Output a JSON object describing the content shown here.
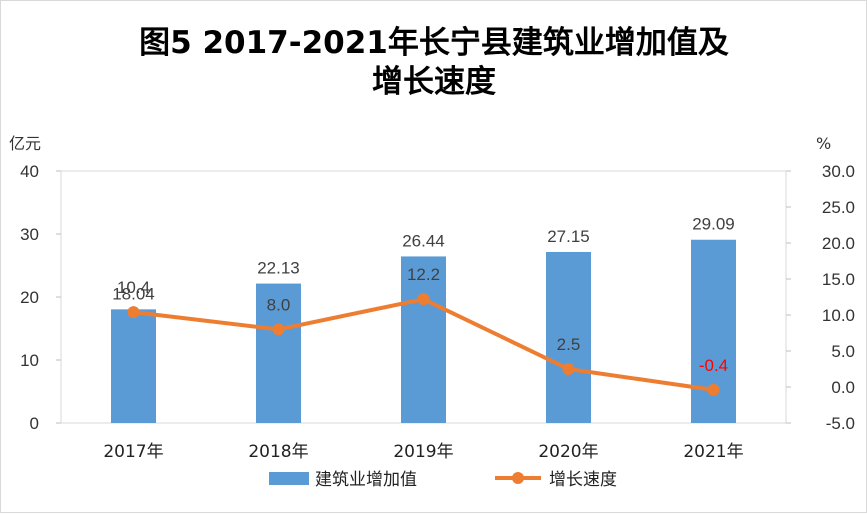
{
  "chart_data": {
    "type": "bar",
    "title_line1": "图5 2017-2021年长宁县建筑业增加值及",
    "title_line2": "增长速度",
    "left_unit": "亿元",
    "right_unit": "%",
    "categories": [
      "2017年",
      "2018年",
      "2019年",
      "2020年",
      "2021年"
    ],
    "y_left": {
      "min": 0,
      "max": 40,
      "ticks": [
        "0",
        "10",
        "20",
        "30",
        "40"
      ]
    },
    "y_right": {
      "min": -5,
      "max": 30,
      "ticks": [
        "-5.0",
        "0.0",
        "5.0",
        "10.0",
        "15.0",
        "20.0",
        "25.0",
        "30.0"
      ]
    },
    "series": [
      {
        "name": "建筑业增加值",
        "type": "bar",
        "axis": "left",
        "values": [
          18.04,
          22.13,
          26.44,
          27.15,
          29.09
        ],
        "labels": [
          "18.04",
          "22.13",
          "26.44",
          "27.15",
          "29.09"
        ],
        "color": "#5b9bd5"
      },
      {
        "name": "增长速度",
        "type": "line",
        "axis": "right",
        "values": [
          10.4,
          8.0,
          12.2,
          2.5,
          -0.4
        ],
        "labels": [
          "10.4",
          "8.0",
          "12.2",
          "2.5",
          "-0.4"
        ],
        "color": "#ed7d31",
        "label_colors": [
          "#404040",
          "#404040",
          "#404040",
          "#404040",
          "#ff0000"
        ]
      }
    ],
    "legend_position": "bottom",
    "grid": false
  }
}
